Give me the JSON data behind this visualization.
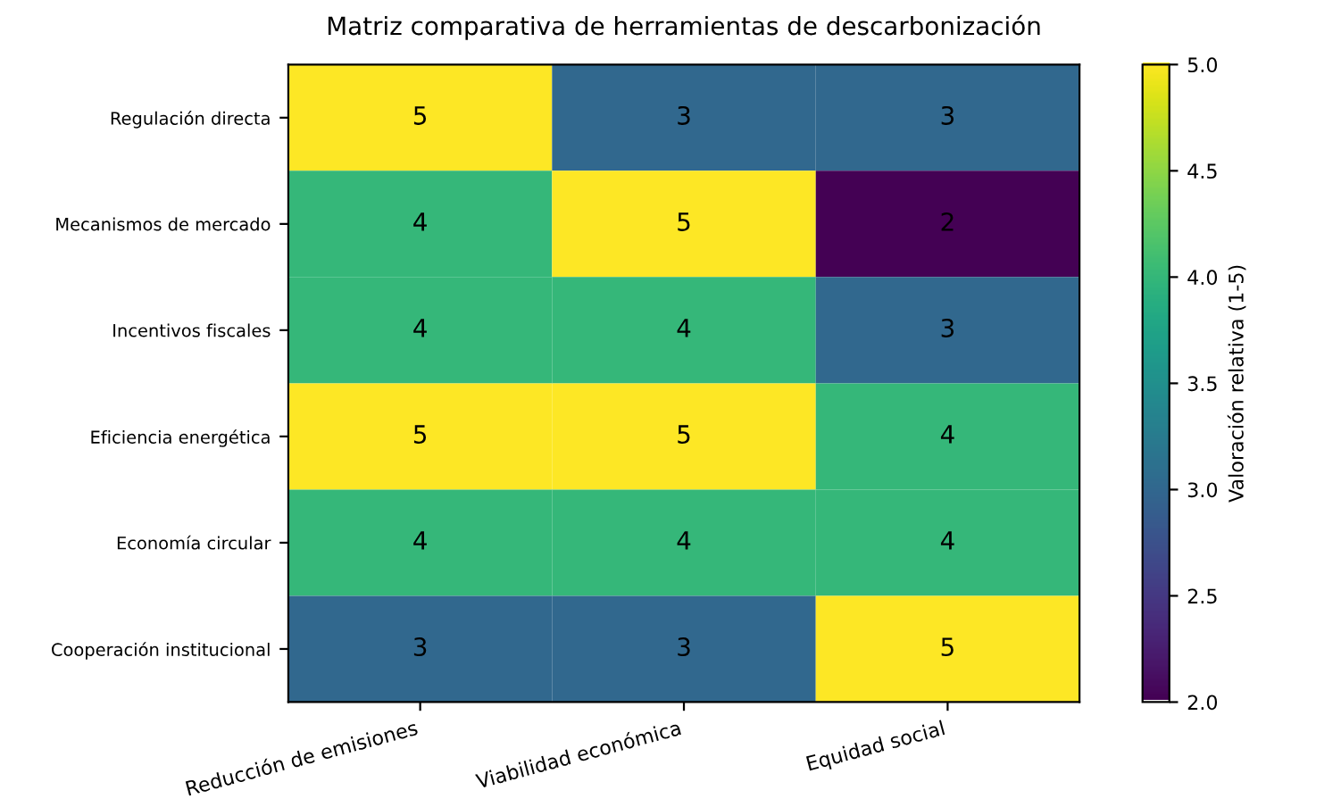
{
  "chart_data": {
    "type": "heatmap",
    "title": "Matriz comparativa de herramientas de descarbonización",
    "categories": [
      "Reducción de emisiones",
      "Viabilidad económica",
      "Equidad social"
    ],
    "y_categories": [
      "Regulación directa",
      "Mecanismos de mercado",
      "Incentivos fiscales",
      "Eficiencia energética",
      "Economía circular",
      "Cooperación institucional"
    ],
    "cells": [
      [
        5,
        3,
        3
      ],
      [
        4,
        5,
        2
      ],
      [
        4,
        4,
        3
      ],
      [
        5,
        5,
        4
      ],
      [
        4,
        4,
        4
      ],
      [
        3,
        3,
        5
      ]
    ],
    "data_labels": true,
    "clabel": "Valoración relativa (1-5)",
    "clim": [
      2,
      5
    ],
    "cticks": [
      {
        "value": 2,
        "label": "2.0"
      },
      2.5,
      {
        "value": 3,
        "label": "3.0"
      },
      3.5,
      {
        "value": 4,
        "label": "4.0"
      },
      4.5,
      {
        "value": 5,
        "label": "5.0"
      }
    ]
  }
}
